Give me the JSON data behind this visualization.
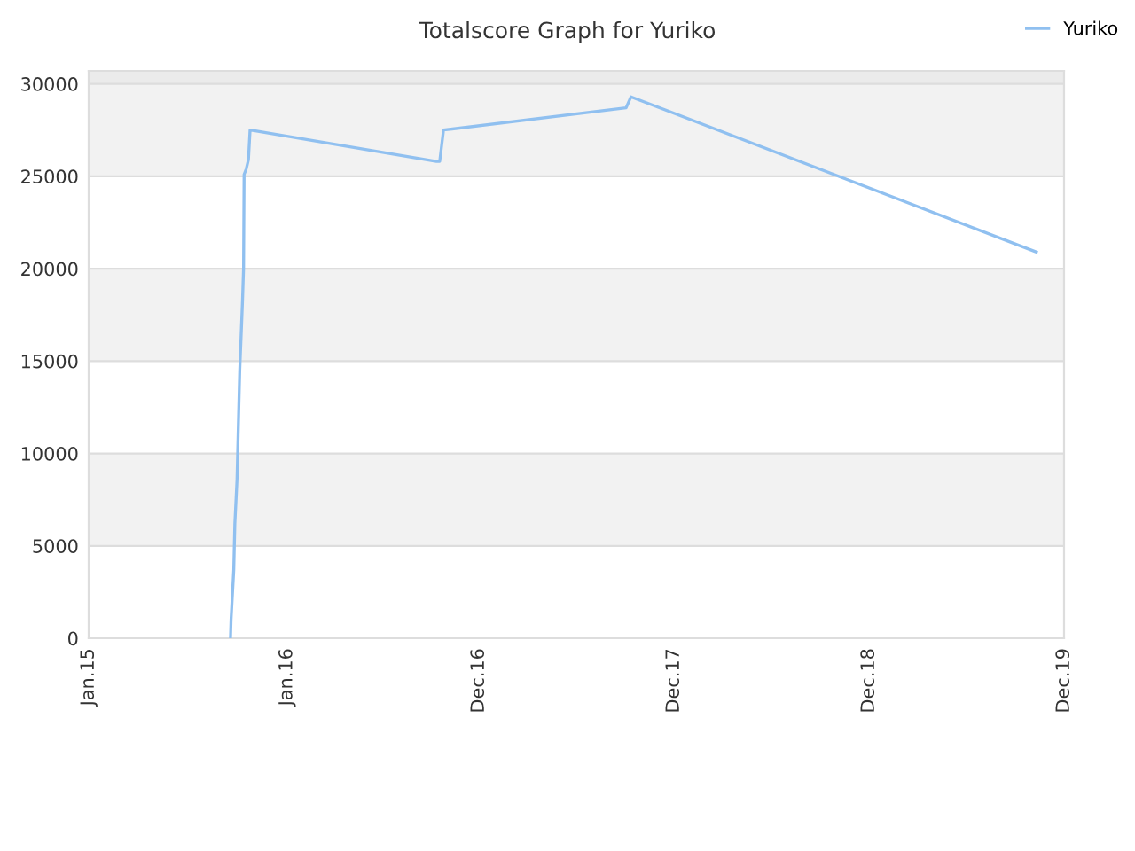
{
  "chart_data": {
    "type": "line",
    "title": "Totalscore Graph for Yuriko",
    "x": [
      "2015-09-19",
      "2015-09-20",
      "2015-09-25",
      "2015-09-27",
      "2015-10-01",
      "2015-10-03",
      "2015-10-06",
      "2015-10-11",
      "2015-10-13",
      "2015-10-14",
      "2015-10-18",
      "2015-10-22",
      "2015-10-25",
      "2016-10-02",
      "2016-10-08",
      "2016-10-15",
      "2017-09-16",
      "2017-09-25",
      "2019-10-11"
    ],
    "series": [
      {
        "name": "Yuriko",
        "color": "#90c0f0",
        "values": [
          0,
          1000,
          3700,
          6200,
          8600,
          11000,
          14500,
          18200,
          20000,
          25100,
          25400,
          25900,
          27500,
          25800,
          25800,
          27500,
          28700,
          29300,
          20900
        ]
      }
    ],
    "xlim": [
      "2015-01-01",
      "2019-12-01"
    ],
    "xticks": [
      {
        "value": "2015-01-01",
        "label": "Jan.15"
      },
      {
        "value": "2016-01-01",
        "label": "Jan.16"
      },
      {
        "value": "2016-12-19",
        "label": "Dec.16"
      },
      {
        "value": "2017-12-13",
        "label": "Dec.17"
      },
      {
        "value": "2018-12-07",
        "label": "Dec.18"
      },
      {
        "value": "2019-12-01",
        "label": "Dec.19"
      }
    ],
    "ylim": [
      0,
      30700
    ],
    "yticks": [
      0,
      5000,
      10000,
      15000,
      20000,
      25000,
      30000
    ],
    "bands": [
      {
        "axis": "y",
        "from": 5000,
        "to": 10000,
        "color": "#f2f2f2"
      },
      {
        "axis": "y",
        "from": 15000,
        "to": 20000,
        "color": "#f2f2f2"
      },
      {
        "axis": "y",
        "from": 25000,
        "to": 30000,
        "color": "#f2f2f2"
      },
      {
        "axis": "y",
        "from": 30000,
        "to": 30700,
        "color": "#ebebeb"
      }
    ],
    "grid": "y",
    "legend": "top right",
    "marker": "none",
    "line_style": "solid"
  }
}
